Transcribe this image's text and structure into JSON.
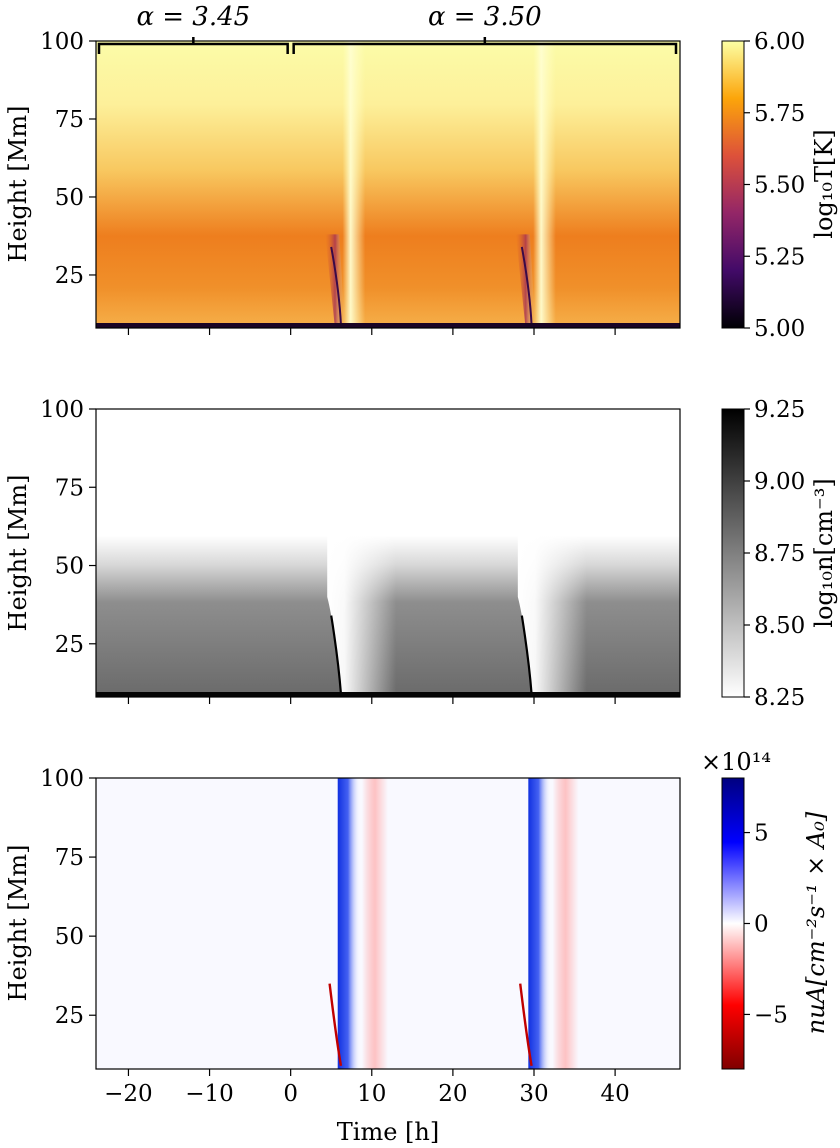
{
  "chart_data": [
    {
      "type": "heatmap",
      "panel": "temperature",
      "xlabel": "",
      "ylabel": "Height [Mm]",
      "xlim": [
        -24,
        48
      ],
      "ylim": [
        8,
        100
      ],
      "xticks": [
        -20,
        -10,
        0,
        10,
        20,
        30,
        40
      ],
      "yticks": [
        25,
        50,
        75,
        100
      ],
      "annotations": [
        {
          "text": "α = 3.45",
          "x_range": [
            -24,
            0
          ]
        },
        {
          "text": "α = 3.50",
          "x_range": [
            0,
            48
          ]
        }
      ],
      "colorbar": {
        "label": "log₁₀T[K]",
        "range": [
          5.0,
          6.0
        ],
        "ticks": [
          "5.00",
          "5.25",
          "5.50",
          "5.75",
          "6.00"
        ],
        "colormap": "inferno",
        "colors": [
          "#000004",
          "#420a68",
          "#932667",
          "#dd513a",
          "#fca50a",
          "#fcffa4"
        ]
      },
      "events": [
        {
          "x_start": 5,
          "front_top_y": 38
        },
        {
          "x_start": 28.5,
          "front_top_y": 38
        }
      ]
    },
    {
      "type": "heatmap",
      "panel": "density",
      "xlabel": "",
      "ylabel": "Height [Mm]",
      "xlim": [
        -24,
        48
      ],
      "ylim": [
        8,
        100
      ],
      "xticks": [
        -20,
        -10,
        0,
        10,
        20,
        30,
        40
      ],
      "yticks": [
        25,
        50,
        75,
        100
      ],
      "colorbar": {
        "label": "log₁₀n[cm⁻³]",
        "range": [
          8.25,
          9.25
        ],
        "ticks": [
          "8.25",
          "8.50",
          "8.75",
          "9.00",
          "9.25"
        ],
        "colormap": "Greys",
        "colors": [
          "#ffffff",
          "#000000"
        ]
      }
    },
    {
      "type": "heatmap",
      "panel": "flux",
      "xlabel": "Time [h]",
      "ylabel": "Height [Mm]",
      "xlim": [
        -24,
        48
      ],
      "ylim": [
        8,
        100
      ],
      "xticks": [
        -20,
        -10,
        0,
        10,
        20,
        30,
        40
      ],
      "yticks": [
        25,
        50,
        75,
        100
      ],
      "colorbar": {
        "label": "nuA[cm⁻²s⁻¹ × A₀]",
        "range": [
          -8,
          8
        ],
        "ticks": [
          "−5",
          "0",
          "5"
        ],
        "tick_values": [
          -5,
          0,
          5
        ],
        "multiplier": "×10¹⁴",
        "colormap": "seismic_r",
        "colors": [
          "#800000",
          "#ff0000",
          "#ffffff",
          "#0000ff",
          "#000080"
        ]
      }
    }
  ]
}
